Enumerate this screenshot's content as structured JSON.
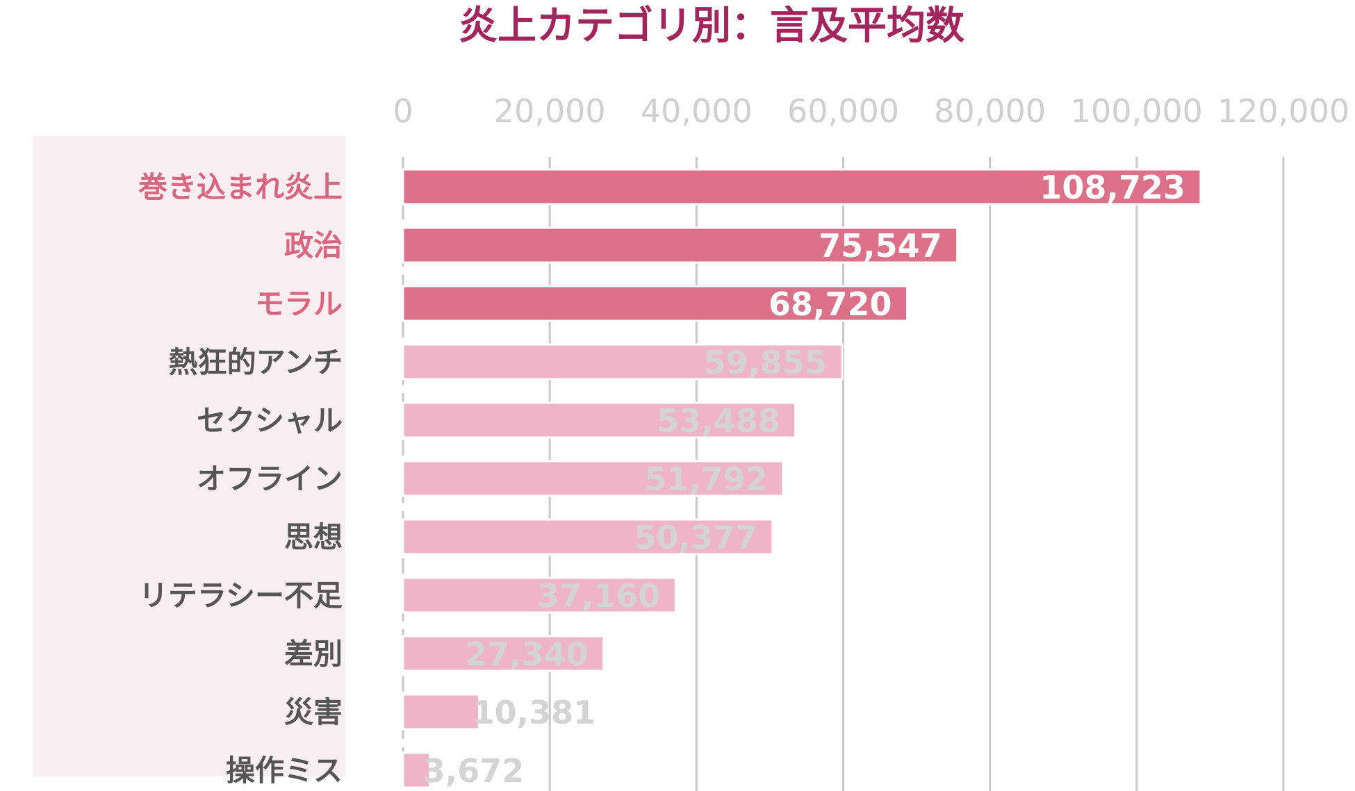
{
  "chart_data": {
    "type": "bar",
    "orientation": "horizontal",
    "title": "炎上カテゴリ別：言及平均数",
    "categories": [
      "巻き込まれ炎上",
      "政治",
      "モラル",
      "熱狂的アンチ",
      "セクシャル",
      "オフライン",
      "思想",
      "リテラシー不足",
      "差別",
      "災害",
      "操作ミス"
    ],
    "values": [
      108723,
      75547,
      68720,
      59855,
      53488,
      51792,
      50377,
      37160,
      27340,
      10381,
      3672
    ],
    "value_labels": [
      "108,723",
      "75,547",
      "68,720",
      "59,855",
      "53,488",
      "51,792",
      "50,377",
      "37,160",
      "27,340",
      "10,381",
      "3,672"
    ],
    "highlight_count": 3,
    "x_ticks": [
      0,
      20000,
      40000,
      60000,
      80000,
      100000,
      120000
    ],
    "x_tick_labels": [
      "0",
      "20,000",
      "40,000",
      "60,000",
      "80,000",
      "100,000",
      "120,000"
    ],
    "xlim": [
      0,
      120000
    ],
    "grid": true,
    "axis_position": "top",
    "colors": {
      "title": "#a3255e",
      "highlight_bar": "#dc7088",
      "normal_bar": "#f0b4c8",
      "highlight_label": "#d9657f",
      "normal_label": "#555555",
      "highlight_value": "#ffffff",
      "normal_value": "#d4d4d4",
      "tick_label": "#cfcfcf",
      "grid": "#c8c8c8",
      "label_panel": "#f9eef1"
    }
  }
}
